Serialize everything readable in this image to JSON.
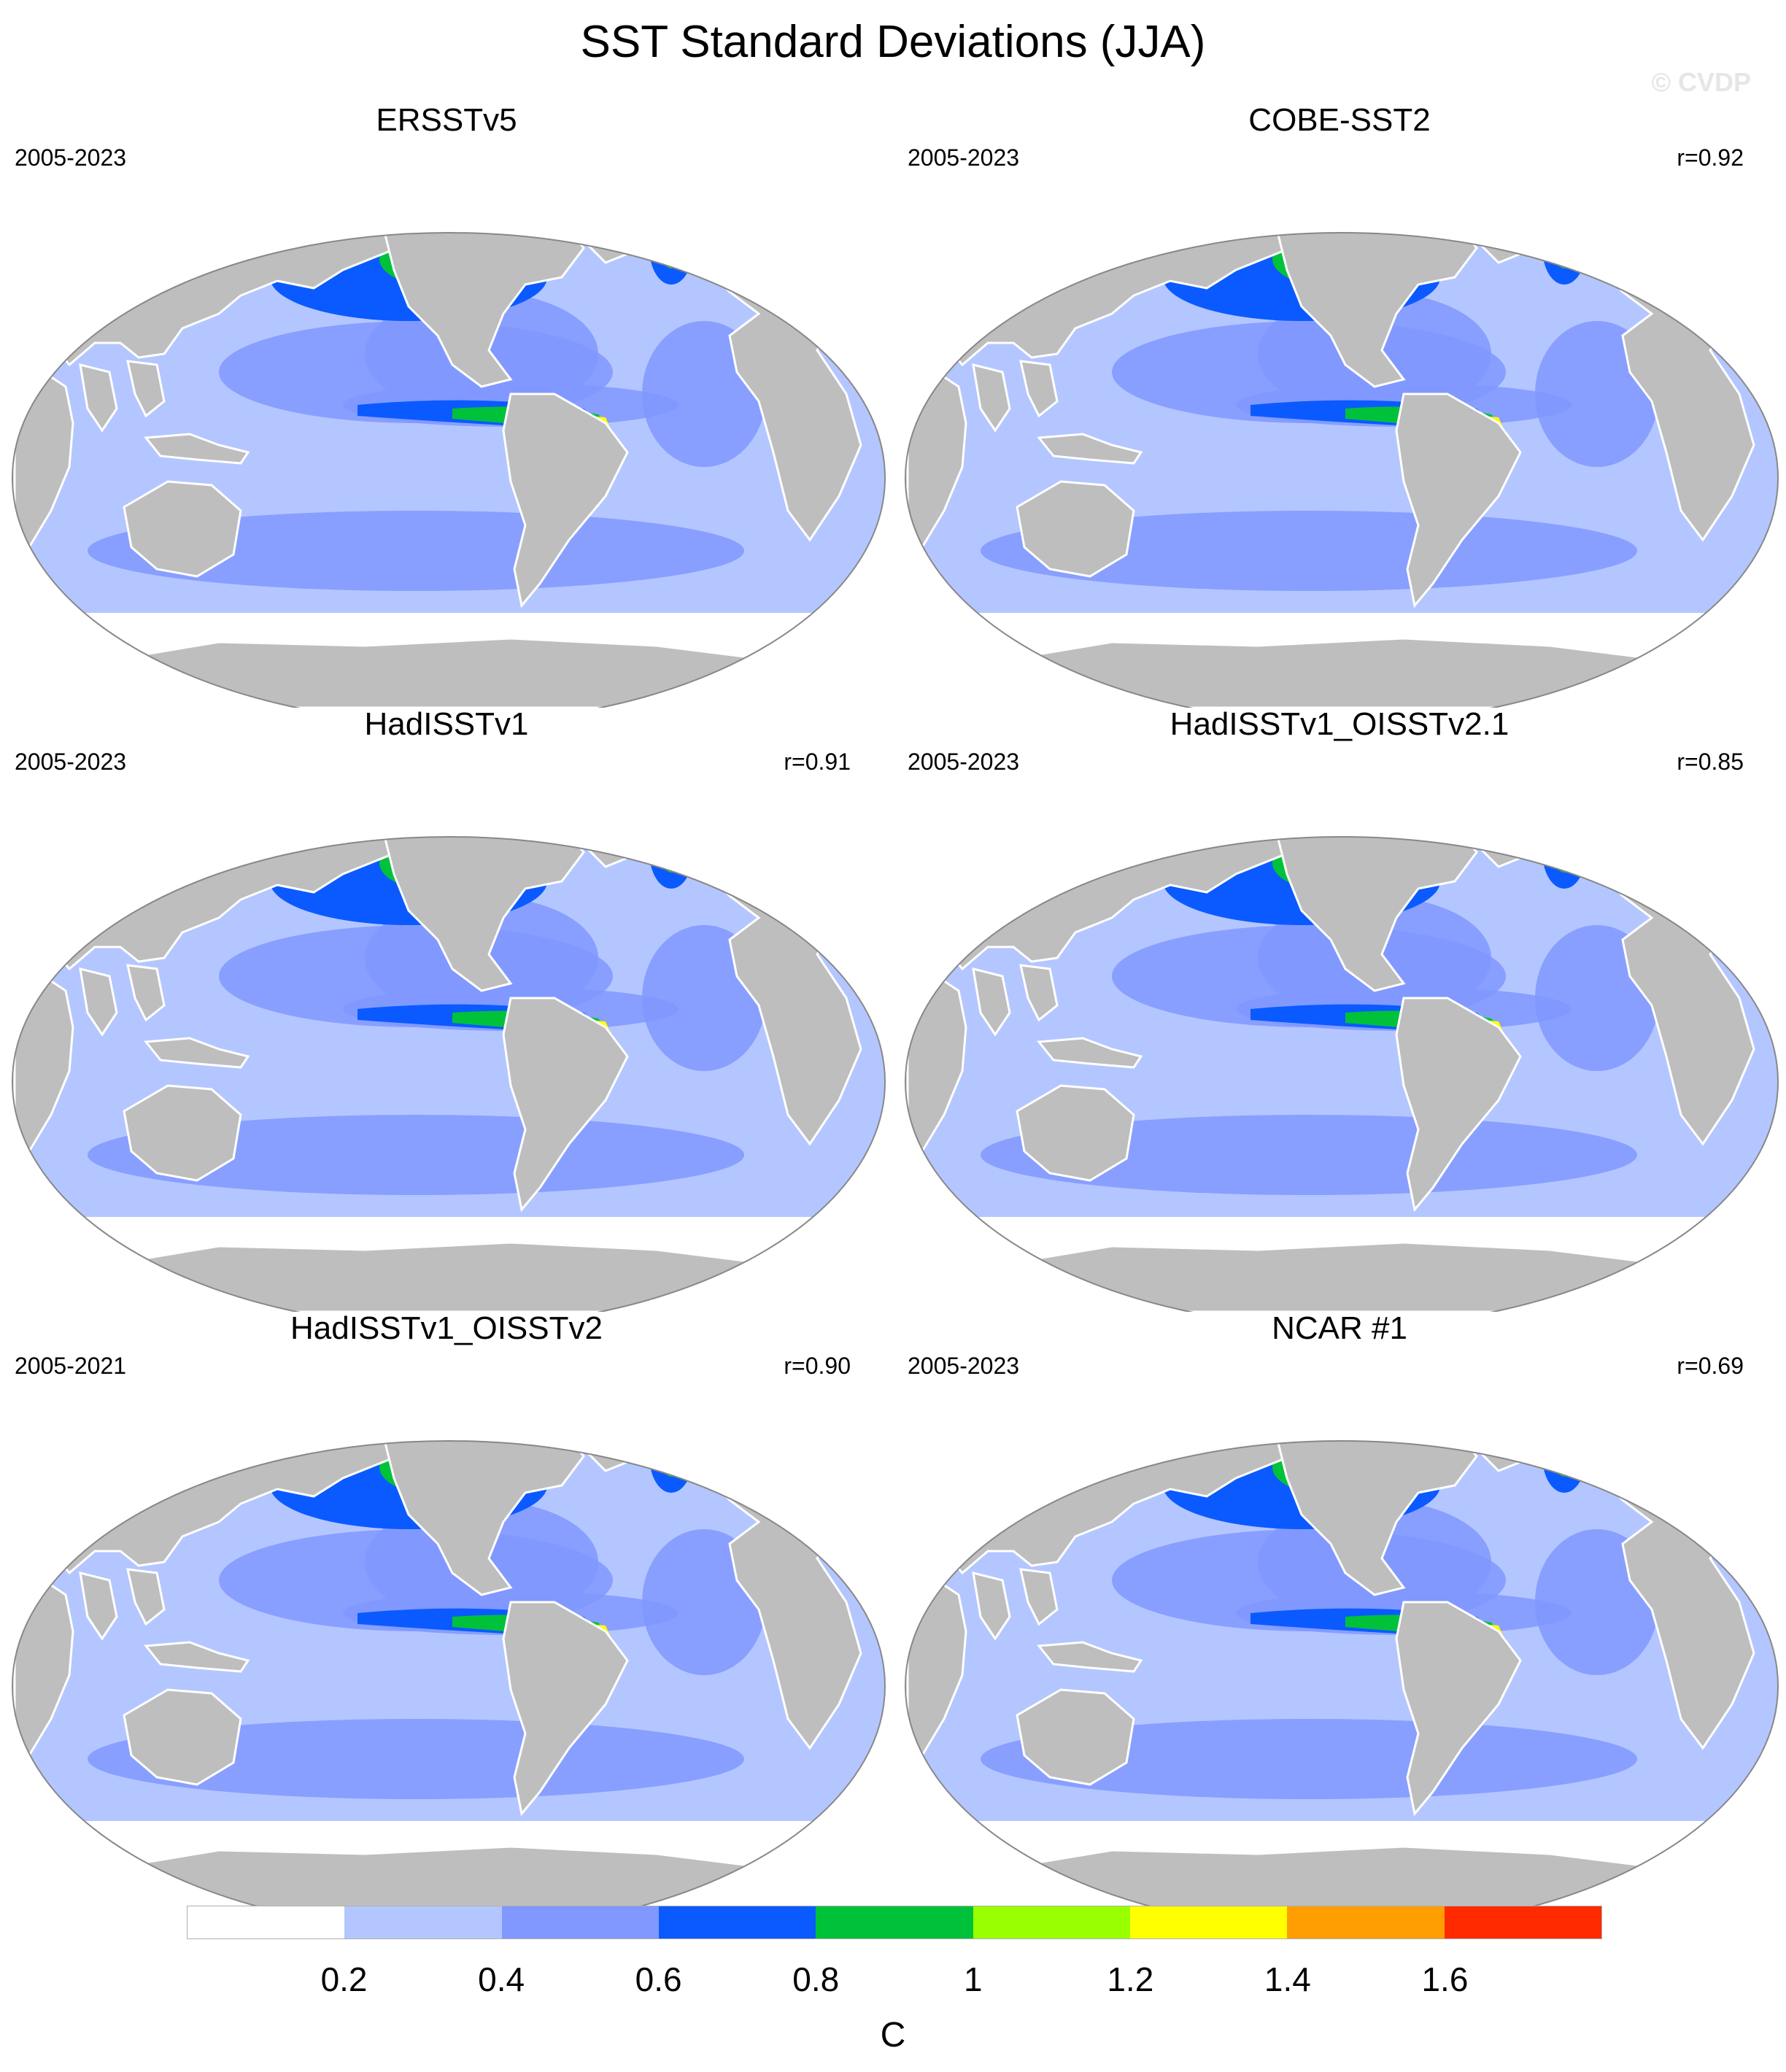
{
  "title": "SST Standard Deviations (JJA)",
  "watermark": "© CVDP",
  "colors": {
    "land": "#bebebe",
    "ocean_base": "#b4c6ff",
    "levels": [
      "#ffffff",
      "#b4c6ff",
      "#8098ff",
      "#0a5aff",
      "#00c23a",
      "#98ff00",
      "#ffff00",
      "#ff9e00",
      "#ff2a00"
    ]
  },
  "panels": [
    {
      "name": "ERSSTv5",
      "years": "2005-2023",
      "r": ""
    },
    {
      "name": "COBE-SST2",
      "years": "2005-2023",
      "r": "r=0.92"
    },
    {
      "name": "HadISSTv1",
      "years": "2005-2023",
      "r": "r=0.91"
    },
    {
      "name": "HadISSTv1_OISSTv2.1",
      "years": "2005-2023",
      "r": "r=0.85"
    },
    {
      "name": "HadISSTv1_OISSTv2",
      "years": "2005-2021",
      "r": "r=0.90"
    },
    {
      "name": "NCAR #1",
      "years": "2005-2023",
      "r": "r=0.69"
    }
  ],
  "colorbar": {
    "labels": [
      "0.2",
      "0.4",
      "0.6",
      "0.8",
      "1",
      "1.2",
      "1.4",
      "1.6"
    ],
    "unit": "C"
  }
}
